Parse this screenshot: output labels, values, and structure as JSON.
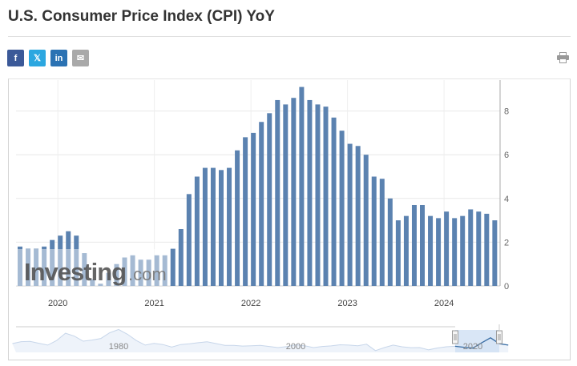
{
  "header": {
    "title": "U.S. Consumer Price Index (CPI) YoY"
  },
  "share": [
    {
      "name": "facebook",
      "label": "f",
      "color": "#3b5998"
    },
    {
      "name": "x",
      "label": "𝕏",
      "color": "#2ca7e0"
    },
    {
      "name": "linkedin",
      "label": "in",
      "color": "#2b72b3"
    },
    {
      "name": "email",
      "label": "✉",
      "color": "#a9a9a9"
    }
  ],
  "print_icon": "print-icon",
  "watermark": {
    "brand": "Investing",
    ".com": ".com"
  },
  "chart_data": {
    "type": "bar",
    "title": "U.S. Consumer Price Index (CPI) YoY",
    "xlabel": "",
    "ylabel": "",
    "ylim": [
      0,
      9.4
    ],
    "yticks": [
      "0",
      "2",
      "4",
      "6",
      "8"
    ],
    "xticks": [
      "2020",
      "2021",
      "2022",
      "2023",
      "2024"
    ],
    "start": "2019-07",
    "end": "2024-06",
    "color": "#5b82b0",
    "values": [
      1.8,
      1.7,
      1.7,
      1.8,
      2.1,
      2.3,
      2.5,
      2.3,
      1.5,
      0.3,
      0.1,
      0.6,
      1.0,
      1.3,
      1.4,
      1.2,
      1.2,
      1.4,
      1.4,
      1.7,
      2.6,
      4.2,
      5.0,
      5.4,
      5.4,
      5.3,
      5.4,
      6.2,
      6.8,
      7.0,
      7.5,
      7.9,
      8.5,
      8.3,
      8.6,
      9.1,
      8.5,
      8.3,
      8.2,
      7.7,
      7.1,
      6.5,
      6.4,
      6.0,
      5.0,
      4.9,
      4.0,
      3.0,
      3.2,
      3.7,
      3.7,
      3.2,
      3.1,
      3.4,
      3.1,
      3.2,
      3.5,
      3.4,
      3.3,
      3.0
    ],
    "navigator": {
      "labels": [
        "1980",
        "2000",
        "2020"
      ],
      "start_year": 1968,
      "values": [
        4.2,
        5.5,
        5.7,
        4.4,
        3.2,
        6.2,
        11.0,
        9.1,
        5.8,
        6.5,
        7.6,
        11.3,
        13.5,
        10.3,
        6.2,
        3.2,
        4.3,
        3.6,
        1.9,
        3.6,
        4.1,
        4.8,
        5.4,
        4.2,
        3.0,
        3.0,
        2.6,
        2.8,
        3.0,
        2.3,
        1.6,
        2.2,
        3.4,
        2.8,
        1.6,
        2.3,
        2.7,
        3.4,
        3.2,
        2.8,
        3.8,
        -0.4,
        1.6,
        3.2,
        2.1,
        1.5,
        1.6,
        0.1,
        1.3,
        2.1,
        2.4,
        1.8,
        1.2,
        4.7,
        8.0,
        4.1,
        3.2
      ]
    }
  }
}
